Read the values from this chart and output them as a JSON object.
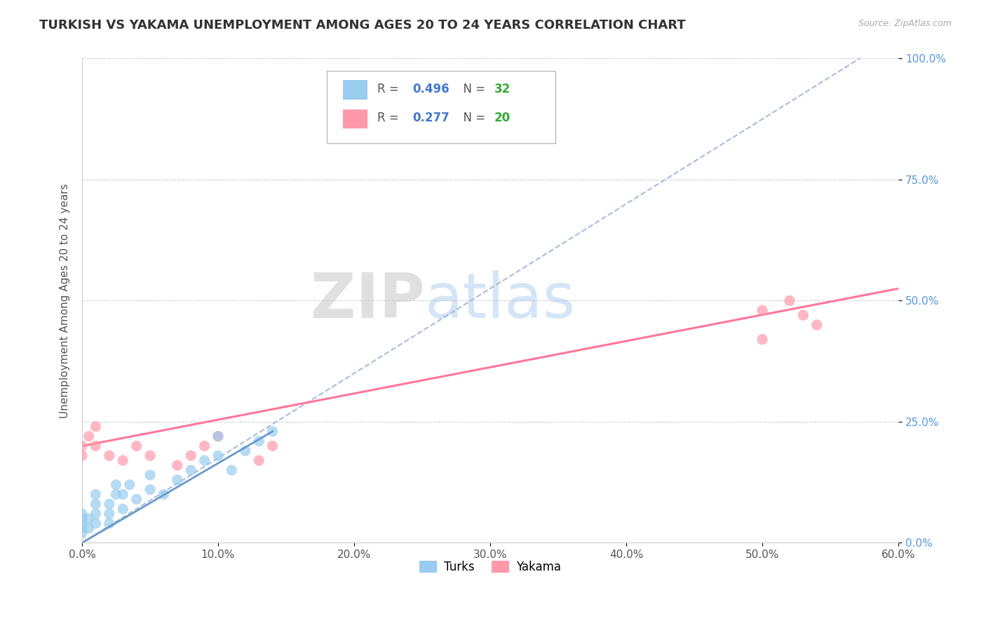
{
  "title": "TURKISH VS YAKAMA UNEMPLOYMENT AMONG AGES 20 TO 24 YEARS CORRELATION CHART",
  "source_text": "Source: ZipAtlas.com",
  "ylabel": "Unemployment Among Ages 20 to 24 years",
  "turks_R": 0.496,
  "turks_N": 32,
  "yakama_R": 0.277,
  "yakama_N": 20,
  "turks_color": "#99CCEE",
  "yakama_color": "#FF99AA",
  "turks_line_color": "#6699CC",
  "yakama_line_color": "#FF7799",
  "turks_dashed_color": "#AABBDD",
  "legend_r_color": "#4477CC",
  "legend_n_color": "#33AA33",
  "ytick_color": "#5599DD",
  "background_color": "#FFFFFF",
  "xlim": [
    0.0,
    0.6
  ],
  "ylim": [
    0.0,
    1.0
  ],
  "xlabel_vals": [
    0.0,
    0.1,
    0.2,
    0.3,
    0.4,
    0.5,
    0.6
  ],
  "ylabel_vals": [
    0.0,
    0.25,
    0.5,
    0.75,
    1.0
  ],
  "turks_scatter_x": [
    0.0,
    0.0,
    0.0,
    0.0,
    0.0,
    0.005,
    0.005,
    0.01,
    0.01,
    0.01,
    0.01,
    0.02,
    0.02,
    0.02,
    0.025,
    0.025,
    0.03,
    0.03,
    0.035,
    0.04,
    0.05,
    0.05,
    0.06,
    0.07,
    0.08,
    0.09,
    0.1,
    0.1,
    0.11,
    0.12,
    0.13,
    0.14
  ],
  "turks_scatter_y": [
    0.02,
    0.03,
    0.04,
    0.05,
    0.06,
    0.03,
    0.05,
    0.04,
    0.06,
    0.08,
    0.1,
    0.04,
    0.06,
    0.08,
    0.1,
    0.12,
    0.07,
    0.1,
    0.12,
    0.09,
    0.11,
    0.14,
    0.1,
    0.13,
    0.15,
    0.17,
    0.18,
    0.22,
    0.15,
    0.19,
    0.21,
    0.23
  ],
  "yakama_scatter_x": [
    0.0,
    0.0,
    0.005,
    0.01,
    0.01,
    0.02,
    0.03,
    0.04,
    0.05,
    0.07,
    0.08,
    0.09,
    0.1,
    0.13,
    0.14,
    0.5,
    0.52,
    0.54,
    0.5,
    0.53
  ],
  "yakama_scatter_y": [
    0.18,
    0.2,
    0.22,
    0.2,
    0.24,
    0.18,
    0.17,
    0.2,
    0.18,
    0.16,
    0.18,
    0.2,
    0.22,
    0.17,
    0.2,
    0.48,
    0.5,
    0.45,
    0.42,
    0.47
  ],
  "watermark_zip": "ZIP",
  "watermark_atlas": "atlas",
  "turks_trend": [
    0.0,
    0.0,
    0.6,
    1.05
  ],
  "yakama_trend": [
    0.0,
    0.2,
    0.6,
    0.525
  ]
}
